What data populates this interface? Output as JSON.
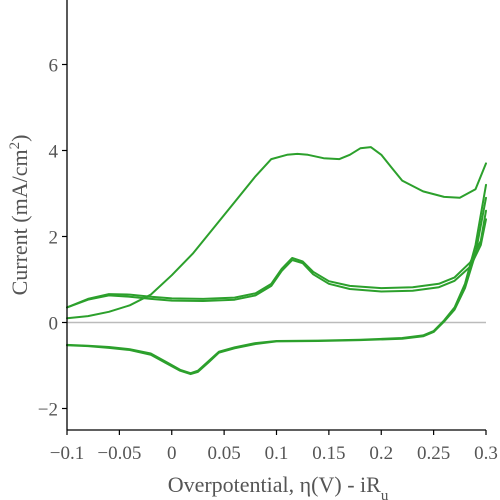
{
  "chart_data": {
    "type": "line",
    "xlabel": "Overpotential, η(V) - iR",
    "xlabel_subscript": "u",
    "ylabel": "Current (mA/cm",
    "ylabel_superscript": "2",
    "ylabel_suffix": ")",
    "xlim": [
      -0.1,
      0.3
    ],
    "ylim": [
      -2.5,
      7.5
    ],
    "x_ticks": [
      -0.1,
      -0.05,
      0,
      0.05,
      0.1,
      0.15,
      0.2,
      0.25,
      0.3
    ],
    "x_tick_labels": [
      "−0.1",
      "−0.05",
      "0",
      "0.05",
      "0.1",
      "0.15",
      "0.2",
      "0.25",
      "0.3"
    ],
    "y_ticks": [
      -2,
      0,
      2,
      4,
      6
    ],
    "y_tick_labels": [
      "−2",
      "0",
      "2",
      "4",
      "6"
    ],
    "zero_line": true,
    "grid": false,
    "colors": {
      "series": "#2ca02c",
      "zero_line": "#bbbbbb",
      "axis": "#000000",
      "text": "#555555"
    },
    "series": [
      {
        "points": [
          [
            -0.1,
            0.1
          ],
          [
            -0.08,
            0.15
          ],
          [
            -0.06,
            0.25
          ],
          [
            -0.04,
            0.4
          ],
          [
            -0.02,
            0.65
          ],
          [
            0,
            1.1
          ],
          [
            0.02,
            1.6
          ],
          [
            0.04,
            2.2
          ],
          [
            0.06,
            2.8
          ],
          [
            0.08,
            3.4
          ],
          [
            0.095,
            3.8
          ],
          [
            0.11,
            3.9
          ],
          [
            0.12,
            3.92
          ],
          [
            0.13,
            3.9
          ],
          [
            0.145,
            3.82
          ],
          [
            0.16,
            3.8
          ],
          [
            0.17,
            3.9
          ],
          [
            0.18,
            4.05
          ],
          [
            0.19,
            4.08
          ],
          [
            0.2,
            3.9
          ],
          [
            0.21,
            3.6
          ],
          [
            0.22,
            3.3
          ],
          [
            0.24,
            3.05
          ],
          [
            0.26,
            2.92
          ],
          [
            0.275,
            2.9
          ],
          [
            0.29,
            3.1
          ],
          [
            0.3,
            3.7
          ]
        ]
      },
      {
        "points": [
          [
            -0.1,
            0.35
          ],
          [
            -0.08,
            0.55
          ],
          [
            -0.06,
            0.66
          ],
          [
            -0.04,
            0.65
          ],
          [
            -0.02,
            0.6
          ],
          [
            0,
            0.56
          ],
          [
            0.03,
            0.55
          ],
          [
            0.06,
            0.58
          ],
          [
            0.08,
            0.68
          ],
          [
            0.095,
            0.9
          ],
          [
            0.105,
            1.25
          ],
          [
            0.115,
            1.5
          ],
          [
            0.125,
            1.42
          ],
          [
            0.135,
            1.18
          ],
          [
            0.15,
            0.96
          ],
          [
            0.17,
            0.85
          ],
          [
            0.2,
            0.8
          ],
          [
            0.23,
            0.82
          ],
          [
            0.255,
            0.9
          ],
          [
            0.27,
            1.05
          ],
          [
            0.285,
            1.4
          ],
          [
            0.295,
            1.9
          ],
          [
            0.3,
            2.6
          ]
        ]
      },
      {
        "points": [
          [
            -0.1,
            0.35
          ],
          [
            -0.08,
            0.53
          ],
          [
            -0.06,
            0.63
          ],
          [
            -0.04,
            0.6
          ],
          [
            -0.02,
            0.55
          ],
          [
            0,
            0.51
          ],
          [
            0.03,
            0.5
          ],
          [
            0.06,
            0.53
          ],
          [
            0.08,
            0.63
          ],
          [
            0.095,
            0.85
          ],
          [
            0.105,
            1.2
          ],
          [
            0.115,
            1.45
          ],
          [
            0.125,
            1.38
          ],
          [
            0.135,
            1.12
          ],
          [
            0.15,
            0.9
          ],
          [
            0.17,
            0.78
          ],
          [
            0.2,
            0.72
          ],
          [
            0.23,
            0.74
          ],
          [
            0.255,
            0.82
          ],
          [
            0.27,
            0.97
          ],
          [
            0.285,
            1.3
          ],
          [
            0.295,
            1.8
          ],
          [
            0.3,
            2.4
          ]
        ]
      },
      {
        "points": [
          [
            0.3,
            3.2
          ],
          [
            0.29,
            1.8
          ],
          [
            0.28,
            0.9
          ],
          [
            0.27,
            0.35
          ],
          [
            0.26,
            0.05
          ],
          [
            0.25,
            -0.2
          ],
          [
            0.24,
            -0.3
          ],
          [
            0.22,
            -0.36
          ],
          [
            0.18,
            -0.4
          ],
          [
            0.14,
            -0.42
          ],
          [
            0.1,
            -0.43
          ],
          [
            0.08,
            -0.48
          ],
          [
            0.06,
            -0.58
          ],
          [
            0.045,
            -0.68
          ],
          [
            0.035,
            -0.9
          ],
          [
            0.025,
            -1.12
          ],
          [
            0.018,
            -1.18
          ],
          [
            0.008,
            -1.1
          ],
          [
            -0.005,
            -0.92
          ],
          [
            -0.02,
            -0.72
          ],
          [
            -0.04,
            -0.62
          ],
          [
            -0.06,
            -0.57
          ],
          [
            -0.08,
            -0.54
          ],
          [
            -0.1,
            -0.52
          ]
        ]
      },
      {
        "points": [
          [
            0.3,
            2.9
          ],
          [
            0.29,
            1.6
          ],
          [
            0.28,
            0.8
          ],
          [
            0.27,
            0.3
          ],
          [
            0.26,
            0.02
          ],
          [
            0.25,
            -0.22
          ],
          [
            0.24,
            -0.32
          ],
          [
            0.22,
            -0.38
          ],
          [
            0.18,
            -0.41
          ],
          [
            0.14,
            -0.43
          ],
          [
            0.1,
            -0.44
          ],
          [
            0.08,
            -0.5
          ],
          [
            0.06,
            -0.6
          ],
          [
            0.045,
            -0.7
          ],
          [
            0.035,
            -0.93
          ],
          [
            0.025,
            -1.15
          ],
          [
            0.018,
            -1.2
          ],
          [
            0.008,
            -1.12
          ],
          [
            -0.005,
            -0.95
          ],
          [
            -0.02,
            -0.75
          ],
          [
            -0.04,
            -0.64
          ],
          [
            -0.06,
            -0.59
          ],
          [
            -0.08,
            -0.55
          ],
          [
            -0.1,
            -0.53
          ]
        ]
      }
    ]
  }
}
